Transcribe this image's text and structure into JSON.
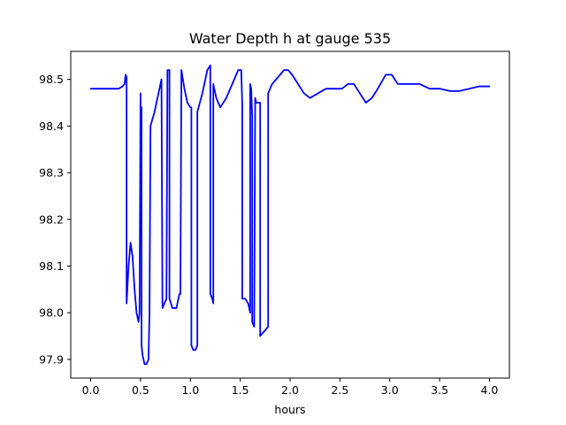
{
  "chart_data": {
    "type": "line",
    "title": "Water Depth h at gauge 535",
    "xlabel": "hours",
    "ylabel": "",
    "xlim": [
      -0.2,
      4.2
    ],
    "ylim": [
      97.86,
      98.56
    ],
    "xticks": [
      0.0,
      0.5,
      1.0,
      1.5,
      2.0,
      2.5,
      3.0,
      3.5,
      4.0
    ],
    "xtick_labels": [
      "0.0",
      "0.5",
      "1.0",
      "1.5",
      "2.0",
      "2.5",
      "3.0",
      "3.5",
      "4.0"
    ],
    "yticks": [
      97.9,
      98.0,
      98.1,
      98.2,
      98.3,
      98.4,
      98.5
    ],
    "ytick_labels": [
      "97.9",
      "98.0",
      "98.1",
      "98.2",
      "98.3",
      "98.4",
      "98.5"
    ],
    "grid": false,
    "color": "#0000ff",
    "series": [
      {
        "x": [
          0.0,
          0.1,
          0.2,
          0.28,
          0.32,
          0.34,
          0.35,
          0.36,
          0.36,
          0.38,
          0.4,
          0.42,
          0.44,
          0.46,
          0.48,
          0.49,
          0.5,
          0.5,
          0.51,
          0.51,
          0.52,
          0.54,
          0.56,
          0.58,
          0.59,
          0.6,
          0.6,
          0.64,
          0.68,
          0.71,
          0.72,
          0.72,
          0.76,
          0.77,
          0.77,
          0.79,
          0.79,
          0.82,
          0.86,
          0.89,
          0.9,
          0.91,
          0.91,
          0.94,
          0.97,
          1.0,
          1.01,
          1.01,
          1.03,
          1.05,
          1.07,
          1.07,
          1.12,
          1.17,
          1.2,
          1.2,
          1.22,
          1.23,
          1.23,
          1.26,
          1.3,
          1.36,
          1.42,
          1.48,
          1.51,
          1.52,
          1.52,
          1.55,
          1.58,
          1.59,
          1.6,
          1.6,
          1.61,
          1.62,
          1.62,
          1.64,
          1.65,
          1.66,
          1.68,
          1.69,
          1.7,
          1.7,
          1.78,
          1.78,
          1.82,
          1.86,
          1.9,
          1.94,
          1.98,
          2.02,
          2.08,
          2.14,
          2.2,
          2.28,
          2.36,
          2.44,
          2.52,
          2.58,
          2.64,
          2.7,
          2.76,
          2.82,
          2.88,
          2.96,
          3.02,
          3.08,
          3.14,
          3.2,
          3.3,
          3.4,
          3.5,
          3.6,
          3.7,
          3.8,
          3.9,
          4.0
        ],
        "y": [
          98.48,
          98.48,
          98.48,
          98.48,
          98.485,
          98.49,
          98.51,
          98.505,
          98.02,
          98.1,
          98.15,
          98.12,
          98.05,
          98.0,
          97.98,
          98.0,
          98.47,
          98.44,
          98.44,
          97.93,
          97.91,
          97.89,
          97.89,
          97.9,
          98.0,
          98.4,
          98.4,
          98.43,
          98.47,
          98.5,
          98.01,
          98.01,
          98.03,
          98.52,
          98.52,
          98.52,
          98.03,
          98.01,
          98.01,
          98.04,
          98.04,
          98.52,
          98.52,
          98.48,
          98.45,
          98.44,
          98.44,
          97.93,
          97.92,
          97.92,
          97.93,
          98.43,
          98.47,
          98.52,
          98.53,
          98.04,
          98.03,
          98.02,
          98.49,
          98.46,
          98.44,
          98.46,
          98.49,
          98.52,
          98.52,
          98.45,
          98.03,
          98.03,
          98.02,
          98.01,
          98.0,
          98.49,
          98.48,
          98.42,
          97.98,
          97.97,
          98.46,
          98.45,
          98.45,
          98.45,
          98.45,
          97.95,
          97.97,
          98.47,
          98.49,
          98.5,
          98.51,
          98.52,
          98.52,
          98.51,
          98.49,
          98.47,
          98.46,
          98.47,
          98.48,
          98.48,
          98.48,
          98.49,
          98.49,
          98.47,
          98.45,
          98.46,
          98.48,
          98.51,
          98.51,
          98.49,
          98.49,
          98.49,
          98.49,
          98.48,
          98.48,
          98.475,
          98.475,
          98.48,
          98.485,
          98.485
        ]
      }
    ]
  }
}
